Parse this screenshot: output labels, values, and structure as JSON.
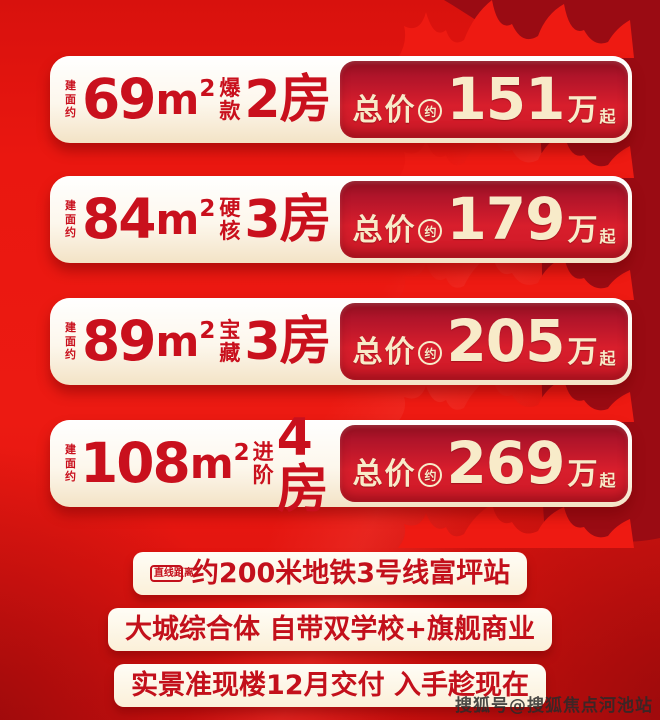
{
  "banners": [
    {
      "build_area_label": "建面约",
      "area_number": "69",
      "area_unit": "m",
      "area_sup": "2",
      "tag": "爆款",
      "rooms": "2房",
      "price_prefix": "总价",
      "price_approx": "约",
      "price_number": "151",
      "price_unit": "万",
      "price_suffix": "起"
    },
    {
      "build_area_label": "建面约",
      "area_number": "84",
      "area_unit": "m",
      "area_sup": "2",
      "tag": "硬核",
      "rooms": "3房",
      "price_prefix": "总价",
      "price_approx": "约",
      "price_number": "179",
      "price_unit": "万",
      "price_suffix": "起"
    },
    {
      "build_area_label": "建面约",
      "area_number": "89",
      "area_unit": "m",
      "area_sup": "2",
      "tag": "宝藏",
      "rooms": "3房",
      "price_prefix": "总价",
      "price_approx": "约",
      "price_number": "205",
      "price_unit": "万",
      "price_suffix": "起"
    },
    {
      "build_area_label": "建面约",
      "area_number": "108",
      "area_unit": "m",
      "area_sup": "2",
      "tag": "进阶",
      "rooms": "4房",
      "price_prefix": "总价",
      "price_approx": "约",
      "price_number": "269",
      "price_unit": "万",
      "price_suffix": "起"
    }
  ],
  "info_rows": {
    "distance_badge": "直线距离",
    "row1": "约200米地铁3号线富坪站",
    "row2": "大城综合体 自带双学校+旗舰商业",
    "row3": "实景准现楼12月交付 入手趁现在"
  },
  "watermark": "搜狐号@搜狐焦点河池站",
  "colors": {
    "background_red": "#e8140f",
    "dark_flame_red": "#9a0b13",
    "bright_flame_red": "#ee1a12",
    "banner_text_red": "#c9101d",
    "price_box_red_top": "#8e0f1e",
    "price_box_red": "#d81e2c",
    "cream_text": "#f8ebc9",
    "info_pill_bg": "#fbf0d9",
    "watermark_gray": "#2a2a2a"
  }
}
